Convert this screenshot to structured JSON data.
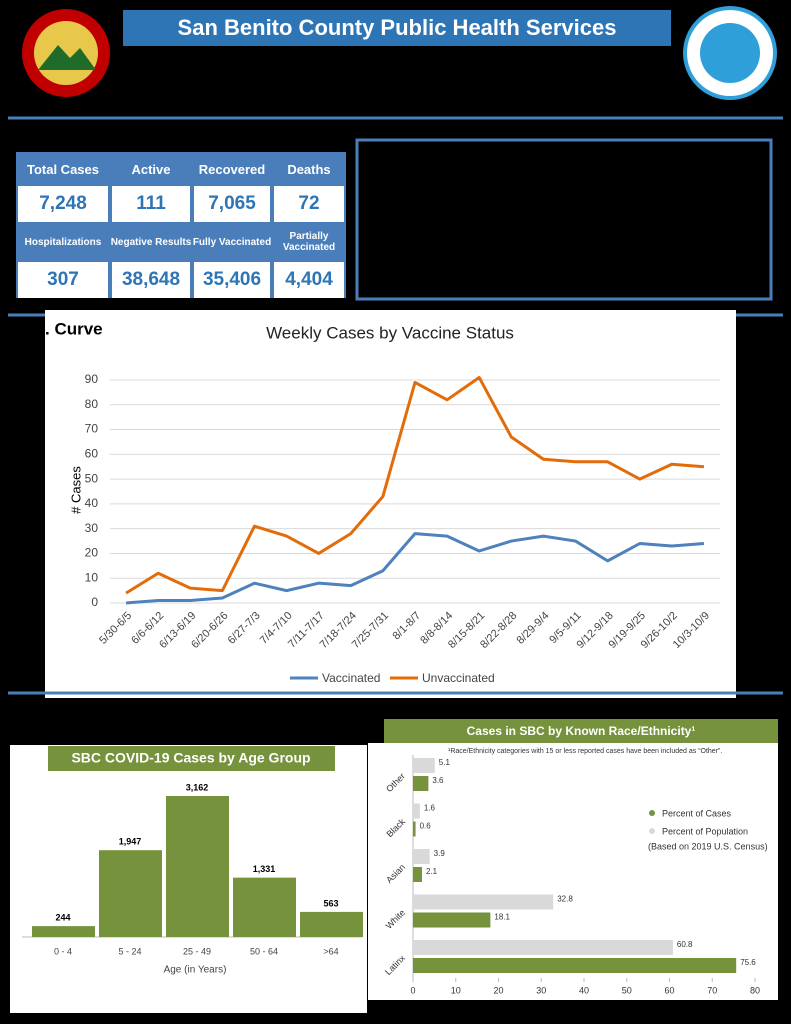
{
  "header": {
    "title": "San Benito County Public Health Services"
  },
  "stats": {
    "rows": [
      [
        {
          "label": "Total Cases",
          "value": "7,248"
        },
        {
          "label": "Active",
          "value": "111"
        },
        {
          "label": "Recovered",
          "value": "7,065"
        },
        {
          "label": "Deaths",
          "value": "72"
        }
      ],
      [
        {
          "label": "Hospitalizations",
          "value": "307"
        },
        {
          "label": "Negative Results",
          "value": "38,648"
        },
        {
          "label": "Fully Vaccinated",
          "value": "35,406"
        },
        {
          "label": "Partially Vaccinated",
          "value": "4,404"
        }
      ]
    ]
  },
  "section_label": ". Curve",
  "chart_data": [
    {
      "type": "line",
      "title": "Weekly Cases by Vaccine Status",
      "y_label": "# Cases",
      "categories": [
        "5/30-6/5",
        "6/6-6/12",
        "6/13-6/19",
        "6/20-6/26",
        "6/27-7/3",
        "7/4-7/10",
        "7/11-7/17",
        "7/18-7/24",
        "7/25-7/31",
        "8/1-8/7",
        "8/8-8/14",
        "8/15-8/21",
        "8/22-8/28",
        "8/29-9/4",
        "9/5-9/11",
        "9/12-9/18",
        "9/19-9/25",
        "9/26-10/2",
        "10/3-10/9"
      ],
      "series": [
        {
          "name": "Vaccinated",
          "color": "#4f81bd",
          "values": [
            0,
            1,
            1,
            2,
            8,
            5,
            8,
            7,
            13,
            28,
            27,
            21,
            25,
            27,
            25,
            17,
            24,
            23,
            24
          ]
        },
        {
          "name": "Unvaccinated",
          "color": "#e36c0a",
          "values": [
            4,
            12,
            6,
            5,
            31,
            27,
            20,
            28,
            43,
            89,
            82,
            91,
            67,
            58,
            57,
            57,
            50,
            56,
            55
          ]
        }
      ],
      "ylim": [
        0,
        90
      ],
      "yticks": [
        0,
        10,
        20,
        30,
        40,
        50,
        60,
        70,
        80,
        90
      ],
      "grid": true
    },
    {
      "type": "bar",
      "title": "SBC COVID-19 Cases by Age Group",
      "x_label": "Age (in Years)",
      "categories": [
        "0 - 4",
        "5 - 24",
        "25 - 49",
        "50 - 64",
        ">64"
      ],
      "values": [
        244,
        1947,
        3162,
        1331,
        563
      ],
      "value_labels": [
        "244",
        "1,947",
        "3,162",
        "1,331",
        "563"
      ],
      "color": "#76923c"
    },
    {
      "type": "hbar",
      "title": "Cases in SBC by Known Race/Ethnicity¹",
      "note": "¹Race/Ethnicity categories with 15 or less reported cases have been included as “Other”.",
      "categories": [
        "Other",
        "Black",
        "Asian",
        "White",
        "Latinx"
      ],
      "series": [
        {
          "name": "Percent of Cases",
          "color": "#76923c",
          "values": [
            3.6,
            0.6,
            2.1,
            18.1,
            75.6
          ]
        },
        {
          "name": "Percent of Population",
          "color": "#d9d9d9",
          "values": [
            5.1,
            1.6,
            3.9,
            32.8,
            60.8
          ]
        }
      ],
      "legend_note": "(Based on 2019 U.S. Census)",
      "xlim": [
        0,
        80
      ],
      "xticks": [
        0,
        10,
        20,
        30,
        40,
        50,
        60,
        70,
        80
      ]
    }
  ]
}
